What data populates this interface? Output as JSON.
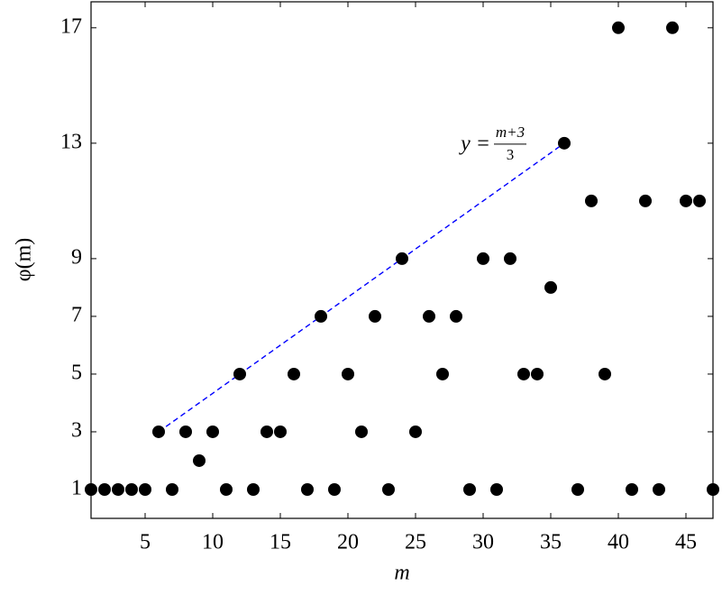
{
  "chart_data": {
    "type": "scatter",
    "x_label": "m",
    "y_label": "φ(m)",
    "x": [
      1,
      2,
      3,
      4,
      5,
      6,
      7,
      8,
      9,
      10,
      11,
      12,
      13,
      14,
      15,
      16,
      17,
      18,
      19,
      20,
      21,
      22,
      23,
      24,
      25,
      26,
      27,
      28,
      29,
      30,
      31,
      32,
      33,
      34,
      35,
      36,
      37,
      38,
      39,
      40,
      41,
      42,
      43,
      44,
      45,
      46,
      47
    ],
    "values": [
      1,
      1,
      1,
      1,
      1,
      3,
      1,
      3,
      2,
      3,
      1,
      5,
      1,
      3,
      3,
      5,
      1,
      7,
      1,
      5,
      3,
      7,
      1,
      9,
      3,
      7,
      5,
      7,
      1,
      9,
      1,
      9,
      5,
      5,
      8,
      13,
      1,
      11,
      5,
      17,
      1,
      11,
      1,
      17,
      11,
      11,
      1
    ],
    "color": "#000000",
    "xlim": [
      1,
      47
    ],
    "ylim": [
      0,
      17.9
    ],
    "xticks": [
      5,
      10,
      15,
      20,
      25,
      30,
      35,
      40,
      45
    ],
    "yticks": [
      1,
      3,
      5,
      7,
      9,
      13,
      17
    ],
    "fit_line": {
      "x": [
        6,
        36
      ],
      "values": [
        3,
        13
      ],
      "color": "#0000ff",
      "dashed": true
    },
    "annotation": {
      "prefix": "y =",
      "numerator": "m+3",
      "denominator": "3"
    }
  }
}
